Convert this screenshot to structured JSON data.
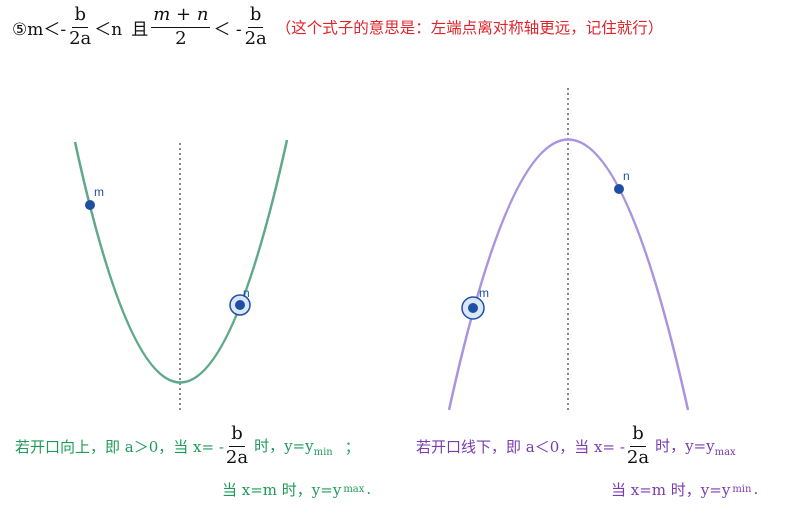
{
  "header": {
    "prefix": "⑤m＜-",
    "b": "b",
    "two_a": "2a",
    "lt_n": "＜n",
    "and": "且",
    "m_plus_n": "m + n",
    "two": "2",
    "lt_minus": "＜ -",
    "b2": "b",
    "two_a2": "2a",
    "hint": "（这个式子的意思是：左端点离对称轴更远，记住就行）"
  },
  "left_graph": {
    "point_m": "m",
    "point_n": "n"
  },
  "right_graph": {
    "point_m": "m",
    "point_n": "n"
  },
  "left_caption": {
    "part1": "若开口向上，即 a＞0，当 x= -",
    "b": "b",
    "two_a": "2a",
    "part2": "时，y=y",
    "sub": "min",
    "part3": "；",
    "line2": "当 x=m 时，y=y",
    "line2_sub": "max",
    "line2_end": "."
  },
  "right_caption": {
    "part1": "若开口线下，即 a＜0，当 x= -",
    "b": "b",
    "two_a": "2a",
    "part2": "时，y=y",
    "sub": "max",
    "line2": "当 x=m 时，y=y",
    "line2_sub": "min",
    "line2_end": "."
  },
  "colors": {
    "left_curve": "#5fa98a",
    "right_curve": "#a895de",
    "point": "#1f4fa3",
    "axis": "#888888",
    "hint": "#e0242a",
    "green_text": "#1f9a5a",
    "purple_text": "#7a3bb0"
  }
}
